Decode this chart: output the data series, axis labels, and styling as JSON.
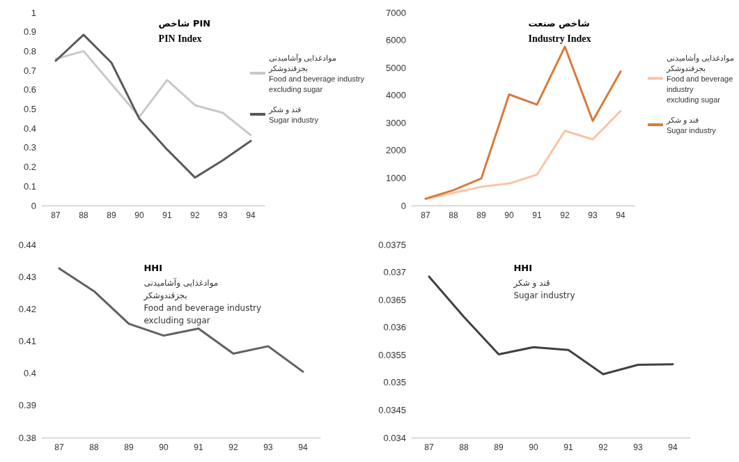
{
  "chart_data": [
    {
      "type": "line",
      "title": "شاخص PIN",
      "subtitle": "PIN Index",
      "categories": [
        "87",
        "88",
        "89",
        "90",
        "91",
        "92",
        "93",
        "94"
      ],
      "ylim": [
        0,
        1
      ],
      "yticks": [
        0,
        0.1,
        0.2,
        0.3,
        0.4,
        0.5,
        0.6,
        0.7,
        0.8,
        0.9,
        1
      ],
      "grid": false,
      "marker": "none",
      "legend": "right",
      "series": [
        {
          "name": "موادغذایی وآشامیدنی\nبجزقندوشکر\nFood and beverage industry\nexcluding sugar",
          "color": "#c8c8c8",
          "values": [
            0.76,
            0.8,
            0.63,
            0.46,
            0.65,
            0.52,
            0.48,
            0.365
          ]
        },
        {
          "name": "قند و شکر\nSugar industry",
          "color": "#595959",
          "values": [
            0.75,
            0.885,
            0.74,
            0.45,
            0.29,
            0.145,
            0.235,
            0.335
          ]
        }
      ]
    },
    {
      "type": "line",
      "title": "شاخص صنعت",
      "subtitle": "Industry Index",
      "categories": [
        "87",
        "88",
        "89",
        "90",
        "91",
        "92",
        "93",
        "94"
      ],
      "ylim": [
        0,
        7000
      ],
      "yticks": [
        0,
        1000,
        2000,
        3000,
        4000,
        5000,
        6000,
        7000
      ],
      "grid": false,
      "marker": "none",
      "legend": "right",
      "series": [
        {
          "name": "موادغذایی وآشامیدنی\nبجزقندوشکر\nFood and beverage\nindustry\nexcluding sugar",
          "color": "#f8c4a4",
          "values": [
            230,
            460,
            680,
            800,
            1120,
            2710,
            2400,
            3430
          ]
        },
        {
          "name": "قند و شکر\nSugar industry",
          "color": "#d87a3a",
          "values": [
            250,
            560,
            980,
            4030,
            3660,
            5760,
            3070,
            4860
          ]
        }
      ]
    },
    {
      "type": "line",
      "title": "HHI",
      "subtitle": "موادغذایی وآشامیدنی\nبجزقندوشکر\nFood and beverage industry\nexcluding sugar",
      "categories": [
        "87",
        "88",
        "89",
        "90",
        "91",
        "92",
        "93",
        "94"
      ],
      "ylim": [
        0.38,
        0.44
      ],
      "yticks": [
        0.38,
        0.39,
        0.4,
        0.41,
        0.42,
        0.43,
        0.44
      ],
      "grid": false,
      "marker": "none",
      "series": [
        {
          "color": "#606060",
          "values": [
            0.4326,
            0.4255,
            0.4154,
            0.4117,
            0.4139,
            0.4061,
            0.4084,
            0.4005
          ]
        }
      ]
    },
    {
      "type": "line",
      "title": "HHI",
      "subtitle": "قند و شکر\nSugar industry",
      "categories": [
        "87",
        "88",
        "89",
        "90",
        "91",
        "92",
        "93",
        "94"
      ],
      "ylim": [
        0.034,
        0.0375
      ],
      "yticks": [
        0.034,
        0.0345,
        0.035,
        0.0355,
        0.036,
        0.0365,
        0.037,
        0.0375
      ],
      "grid": false,
      "marker": "none",
      "series": [
        {
          "color": "#404040",
          "values": [
            0.03692,
            0.03619,
            0.03551,
            0.03564,
            0.03559,
            0.03515,
            0.03532,
            0.03533
          ]
        }
      ]
    }
  ]
}
